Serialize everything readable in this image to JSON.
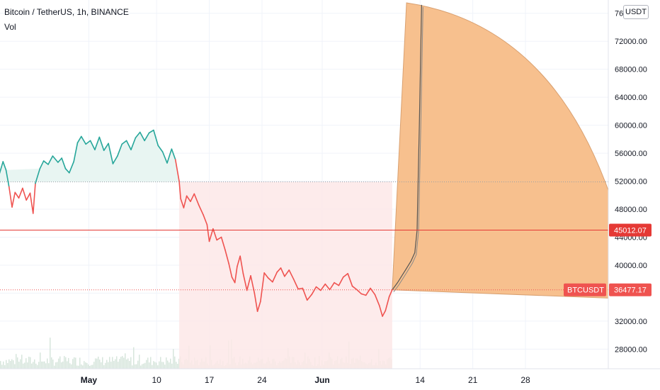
{
  "header": {
    "title": "Bitcoin / TetherUS, 1h, BINANCE",
    "vol_label": "Vol",
    "currency_button": "USDT"
  },
  "colors": {
    "up": "#26a69a",
    "down": "#ef5350",
    "up_fill": "#e8f5f2",
    "down_fill": "#fde8e8",
    "projection_fill": "#f7c08e",
    "projection_stroke": "#d9a070",
    "level_line": "#e53935",
    "volume": "#d7e6dc"
  },
  "chart_data": {
    "type": "line",
    "symbol": "BTCUSDT",
    "interval": "1h",
    "exchange": "BINANCE",
    "y_ticks": [
      28000,
      32000,
      36000,
      40000,
      44000,
      48000,
      52000,
      56000,
      60000,
      64000,
      68000,
      72000,
      76000
    ],
    "y_tick_labels": [
      "28000.00",
      "32000.00",
      "36000.00",
      "40000.00",
      "44000.00",
      "48000.00",
      "52000.00",
      "56000.00",
      "60000.00",
      "64000.00",
      "68000.00",
      "72000.00",
      "76000.00"
    ],
    "x_ticks": [
      {
        "day": 1,
        "label": "May",
        "bold": true
      },
      {
        "day": 10,
        "label": "10",
        "bold": false
      },
      {
        "day": 17,
        "label": "17",
        "bold": false
      },
      {
        "day": 24,
        "label": "24",
        "bold": false
      },
      {
        "day": 32,
        "label": "Jun",
        "bold": true
      },
      {
        "day": 45,
        "label": "14",
        "bold": false
      },
      {
        "day": 52,
        "label": "21",
        "bold": false
      },
      {
        "day": 59,
        "label": "28",
        "bold": false
      }
    ],
    "x_range_days": [
      -10.8,
      70
    ],
    "y_range": [
      25200,
      77900
    ],
    "price_series": [
      {
        "d": -11.0,
        "p": 52600
      },
      {
        "d": -10.4,
        "p": 54800
      },
      {
        "d": -10.0,
        "p": 53600
      },
      {
        "d": -9.6,
        "p": 51200
      },
      {
        "d": -9.2,
        "p": 48300
      },
      {
        "d": -8.8,
        "p": 50400
      },
      {
        "d": -8.3,
        "p": 49600
      },
      {
        "d": -7.8,
        "p": 51000
      },
      {
        "d": -7.3,
        "p": 49300
      },
      {
        "d": -6.8,
        "p": 50300
      },
      {
        "d": -6.4,
        "p": 47400
      },
      {
        "d": -6.1,
        "p": 51700
      },
      {
        "d": -5.5,
        "p": 53800
      },
      {
        "d": -5.0,
        "p": 54900
      },
      {
        "d": -4.4,
        "p": 54400
      },
      {
        "d": -3.8,
        "p": 55600
      },
      {
        "d": -3.1,
        "p": 54700
      },
      {
        "d": -2.6,
        "p": 55300
      },
      {
        "d": -2.1,
        "p": 53800
      },
      {
        "d": -1.6,
        "p": 53200
      },
      {
        "d": -1.0,
        "p": 54800
      },
      {
        "d": -0.5,
        "p": 57500
      },
      {
        "d": 0.0,
        "p": 58400
      },
      {
        "d": 0.6,
        "p": 57300
      },
      {
        "d": 1.2,
        "p": 57800
      },
      {
        "d": 1.8,
        "p": 56500
      },
      {
        "d": 2.4,
        "p": 58300
      },
      {
        "d": 3.0,
        "p": 56400
      },
      {
        "d": 3.6,
        "p": 57400
      },
      {
        "d": 4.2,
        "p": 54500
      },
      {
        "d": 4.8,
        "p": 55600
      },
      {
        "d": 5.4,
        "p": 57300
      },
      {
        "d": 6.0,
        "p": 57800
      },
      {
        "d": 6.6,
        "p": 56500
      },
      {
        "d": 7.2,
        "p": 58200
      },
      {
        "d": 7.8,
        "p": 59000
      },
      {
        "d": 8.4,
        "p": 57800
      },
      {
        "d": 9.0,
        "p": 58900
      },
      {
        "d": 9.6,
        "p": 59300
      },
      {
        "d": 10.2,
        "p": 57100
      },
      {
        "d": 10.8,
        "p": 56200
      },
      {
        "d": 11.4,
        "p": 54600
      },
      {
        "d": 12.0,
        "p": 56600
      },
      {
        "d": 12.5,
        "p": 55100
      },
      {
        "d": 13.0,
        "p": 52000
      },
      {
        "d": 13.2,
        "p": 49500
      },
      {
        "d": 13.6,
        "p": 48200
      },
      {
        "d": 14.0,
        "p": 49900
      },
      {
        "d": 14.5,
        "p": 49100
      },
      {
        "d": 15.0,
        "p": 50200
      },
      {
        "d": 15.6,
        "p": 48600
      },
      {
        "d": 16.2,
        "p": 47200
      },
      {
        "d": 16.7,
        "p": 45800
      },
      {
        "d": 17.0,
        "p": 43400
      },
      {
        "d": 17.5,
        "p": 45200
      },
      {
        "d": 18.0,
        "p": 43600
      },
      {
        "d": 18.6,
        "p": 44000
      },
      {
        "d": 19.1,
        "p": 42200
      },
      {
        "d": 19.6,
        "p": 40200
      },
      {
        "d": 20.0,
        "p": 38300
      },
      {
        "d": 20.4,
        "p": 37500
      },
      {
        "d": 20.7,
        "p": 39800
      },
      {
        "d": 21.1,
        "p": 41300
      },
      {
        "d": 21.5,
        "p": 38800
      },
      {
        "d": 22.0,
        "p": 36400
      },
      {
        "d": 22.5,
        "p": 38500
      },
      {
        "d": 23.0,
        "p": 36000
      },
      {
        "d": 23.4,
        "p": 33400
      },
      {
        "d": 23.8,
        "p": 34800
      },
      {
        "d": 24.3,
        "p": 38900
      },
      {
        "d": 24.8,
        "p": 38200
      },
      {
        "d": 25.4,
        "p": 37600
      },
      {
        "d": 26.0,
        "p": 39000
      },
      {
        "d": 26.5,
        "p": 39600
      },
      {
        "d": 27.0,
        "p": 38400
      },
      {
        "d": 27.6,
        "p": 39300
      },
      {
        "d": 28.2,
        "p": 38000
      },
      {
        "d": 28.8,
        "p": 36600
      },
      {
        "d": 29.4,
        "p": 36700
      },
      {
        "d": 30.0,
        "p": 35000
      },
      {
        "d": 30.6,
        "p": 35800
      },
      {
        "d": 31.2,
        "p": 36900
      },
      {
        "d": 31.8,
        "p": 36400
      },
      {
        "d": 32.4,
        "p": 37300
      },
      {
        "d": 33.0,
        "p": 36500
      },
      {
        "d": 33.6,
        "p": 37500
      },
      {
        "d": 34.2,
        "p": 37100
      },
      {
        "d": 34.8,
        "p": 38300
      },
      {
        "d": 35.4,
        "p": 38800
      },
      {
        "d": 36.0,
        "p": 37000
      },
      {
        "d": 36.6,
        "p": 36500
      },
      {
        "d": 37.2,
        "p": 35900
      },
      {
        "d": 37.8,
        "p": 35700
      },
      {
        "d": 38.4,
        "p": 36700
      },
      {
        "d": 39.0,
        "p": 35800
      },
      {
        "d": 39.6,
        "p": 34200
      },
      {
        "d": 40.0,
        "p": 32700
      },
      {
        "d": 40.4,
        "p": 33500
      },
      {
        "d": 40.9,
        "p": 35500
      },
      {
        "d": 41.3,
        "p": 36477
      }
    ],
    "projection": {
      "start": {
        "d": 41.3,
        "p": 36477
      },
      "top": {
        "d": 43.2,
        "p": 77500
      },
      "end": {
        "d": 70,
        "p": 50700
      },
      "base_end": {
        "d": 70,
        "p": 35300
      },
      "path_points": [
        {
          "d": 41.3,
          "p": 36477
        },
        {
          "d": 42.0,
          "p": 37500
        },
        {
          "d": 43.0,
          "p": 39200
        },
        {
          "d": 43.8,
          "p": 40600
        },
        {
          "d": 44.3,
          "p": 41800
        },
        {
          "d": 44.6,
          "p": 45000
        },
        {
          "d": 44.9,
          "p": 60000
        },
        {
          "d": 45.2,
          "p": 77200
        }
      ]
    },
    "horizontal_levels": [
      {
        "price": 45012.07,
        "label": "45012.07",
        "style": "solid"
      },
      {
        "price": 36477.17,
        "label": "36477.17",
        "style": "dotted"
      },
      {
        "price": 51900,
        "label": "",
        "style": "dotted"
      }
    ],
    "last_price_tag": {
      "symbol": "BTCUSDT",
      "price": "36477.17"
    },
    "level_tag": {
      "price": "45012.07"
    }
  }
}
